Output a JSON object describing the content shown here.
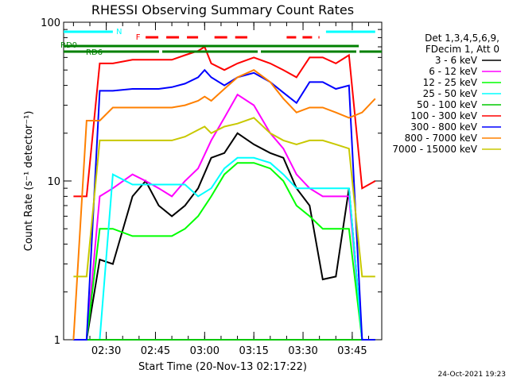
{
  "chart_data": {
    "type": "line",
    "title": "RHESSI Observing Summary Count Rates",
    "xlabel": "Start Time (20-Nov-13 02:17:22)",
    "ylabel": "Count Rate (s⁻¹ detector⁻¹)",
    "yscale": "log",
    "ylim": [
      1,
      100
    ],
    "xlim": [
      "02:17",
      "03:54"
    ],
    "x_ticks": [
      "02:30",
      "02:45",
      "03:00",
      "03:15",
      "03:30",
      "03:45"
    ],
    "y_ticks": [
      "1",
      "10",
      "100"
    ],
    "legend_header": [
      "Det 1,3,4,5,6,9,",
      "FDecim 1, Att 0"
    ],
    "legend_placement": "right",
    "series": [
      {
        "name": "3 - 6 keV",
        "color": "#000000",
        "x": [
          "02:24",
          "02:28",
          "02:32",
          "02:38",
          "02:42",
          "02:46",
          "02:50",
          "02:54",
          "02:58",
          "03:02",
          "03:06",
          "03:10",
          "03:15",
          "03:20",
          "03:24",
          "03:28",
          "03:32",
          "03:36",
          "03:40",
          "03:44",
          "03:48",
          "03:52"
        ],
        "y": [
          1.0,
          3.2,
          3.0,
          8.0,
          10,
          7,
          6,
          7,
          9,
          14,
          15,
          20,
          17,
          15,
          14,
          9,
          7,
          2.4,
          2.5,
          9,
          1.0,
          1.0
        ]
      },
      {
        "name": "6 - 12 keV",
        "color": "#ff00ff",
        "x": [
          "02:24",
          "02:28",
          "02:32",
          "02:38",
          "02:42",
          "02:46",
          "02:50",
          "02:54",
          "02:58",
          "03:02",
          "03:06",
          "03:10",
          "03:15",
          "03:20",
          "03:24",
          "03:28",
          "03:32",
          "03:36",
          "03:40",
          "03:44",
          "03:48",
          "03:52"
        ],
        "y": [
          1.0,
          8,
          9,
          11,
          10,
          9,
          8,
          10,
          12,
          18,
          25,
          35,
          30,
          20,
          16,
          11,
          9,
          8,
          8,
          8,
          1.0,
          1.0
        ]
      },
      {
        "name": "12 - 25 keV",
        "color": "#00ff00",
        "x": [
          "02:24",
          "02:28",
          "02:32",
          "02:38",
          "02:42",
          "02:46",
          "02:50",
          "02:54",
          "02:58",
          "03:02",
          "03:06",
          "03:10",
          "03:15",
          "03:20",
          "03:24",
          "03:28",
          "03:32",
          "03:36",
          "03:40",
          "03:44",
          "03:48",
          "03:52"
        ],
        "y": [
          1.0,
          5,
          5,
          4.5,
          4.5,
          4.5,
          4.5,
          5,
          6,
          8,
          11,
          13,
          13,
          12,
          10,
          7,
          6,
          5,
          5,
          5,
          1.0,
          1.0
        ]
      },
      {
        "name": "25 - 50 keV",
        "color": "#00ffff",
        "x": [
          "02:24",
          "02:28",
          "02:32",
          "02:38",
          "02:42",
          "02:46",
          "02:50",
          "02:54",
          "02:58",
          "03:02",
          "03:06",
          "03:10",
          "03:15",
          "03:20",
          "03:24",
          "03:28",
          "03:32",
          "03:36",
          "03:40",
          "03:44",
          "03:48",
          "03:52"
        ],
        "y": [
          1.0,
          1.0,
          11,
          9.5,
          9.5,
          9.5,
          9.5,
          9.5,
          8,
          9,
          12,
          14,
          14,
          13,
          11,
          9,
          9,
          9,
          9,
          9,
          1.0,
          1.0
        ]
      },
      {
        "name": "50 - 100 keV",
        "color": "#00c800",
        "x": [
          "02:24",
          "02:28",
          "02:32",
          "02:38",
          "02:42",
          "02:46",
          "02:50",
          "02:54",
          "02:58",
          "03:02",
          "03:06",
          "03:10",
          "03:15",
          "03:20",
          "03:24",
          "03:28",
          "03:32",
          "03:36",
          "03:40",
          "03:44",
          "03:48",
          "03:52"
        ],
        "y": [
          1.0,
          1.0,
          1.0,
          1.0,
          1.0,
          1.0,
          1.0,
          1.0,
          1.0,
          1.0,
          1.0,
          1.0,
          1.0,
          1.0,
          1.0,
          1.0,
          1.0,
          1.0,
          1.0,
          1.0,
          1.0,
          1.0
        ]
      },
      {
        "name": "100 - 300 keV",
        "color": "#ff0000",
        "x": [
          "02:20",
          "02:24",
          "02:28",
          "02:32",
          "02:38",
          "02:42",
          "02:46",
          "02:50",
          "02:54",
          "02:58",
          "03:00",
          "03:02",
          "03:06",
          "03:10",
          "03:15",
          "03:20",
          "03:24",
          "03:28",
          "03:32",
          "03:36",
          "03:40",
          "03:44",
          "03:48",
          "03:52"
        ],
        "y": [
          8,
          8,
          55,
          55,
          58,
          58,
          58,
          58,
          62,
          66,
          70,
          55,
          50,
          55,
          60,
          55,
          50,
          45,
          60,
          60,
          55,
          62,
          9,
          10
        ]
      },
      {
        "name": "300 - 800 keV",
        "color": "#0000ff",
        "x": [
          "02:20",
          "02:24",
          "02:28",
          "02:32",
          "02:38",
          "02:42",
          "02:46",
          "02:50",
          "02:54",
          "02:58",
          "03:00",
          "03:02",
          "03:06",
          "03:10",
          "03:15",
          "03:20",
          "03:24",
          "03:28",
          "03:32",
          "03:36",
          "03:40",
          "03:44",
          "03:48",
          "03:52"
        ],
        "y": [
          1.0,
          1.0,
          37,
          37,
          38,
          38,
          38,
          39,
          41,
          45,
          50,
          45,
          40,
          45,
          48,
          42,
          36,
          31,
          42,
          42,
          38,
          40,
          1.0,
          1.0
        ]
      },
      {
        "name": "800 - 7000 keV",
        "color": "#ff8000",
        "x": [
          "02:20",
          "02:24",
          "02:28",
          "02:32",
          "02:38",
          "02:42",
          "02:46",
          "02:50",
          "02:54",
          "02:58",
          "03:00",
          "03:02",
          "03:06",
          "03:10",
          "03:15",
          "03:20",
          "03:24",
          "03:28",
          "03:32",
          "03:36",
          "03:40",
          "03:44",
          "03:48",
          "03:52"
        ],
        "y": [
          1.0,
          24,
          24,
          29,
          29,
          29,
          29,
          29,
          30,
          32,
          34,
          32,
          38,
          45,
          50,
          42,
          33,
          27,
          29,
          29,
          27,
          25,
          27,
          33
        ]
      },
      {
        "name": "7000 - 15000 keV",
        "color": "#c8c800",
        "x": [
          "02:20",
          "02:24",
          "02:28",
          "02:32",
          "02:38",
          "02:42",
          "02:46",
          "02:50",
          "02:54",
          "02:58",
          "03:00",
          "03:02",
          "03:06",
          "03:10",
          "03:15",
          "03:20",
          "03:24",
          "03:28",
          "03:32",
          "03:36",
          "03:40",
          "03:44",
          "03:48",
          "03:52"
        ],
        "y": [
          2.5,
          2.5,
          18,
          18,
          18,
          18,
          18,
          18,
          19,
          21,
          22,
          20,
          22,
          23,
          25,
          20,
          18,
          17,
          18,
          18,
          17,
          16,
          2.5,
          2.5
        ]
      }
    ],
    "flags": {
      "N": {
        "label": "N",
        "color": "#00ffff"
      },
      "F": {
        "label": "F",
        "color": "#ff0000"
      },
      "RD0": {
        "label": "RD0",
        "color": "#008000"
      },
      "RD6": {
        "label": "RD6",
        "color": "#008000"
      }
    }
  },
  "page": {
    "timestamp": "24-Oct-2021 19:23"
  }
}
